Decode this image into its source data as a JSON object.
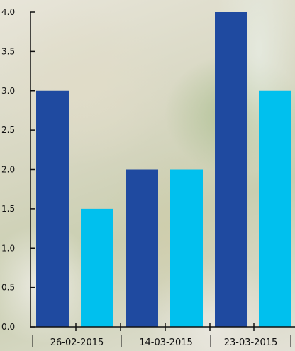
{
  "chart_data": {
    "type": "bar",
    "categories": [
      "26-02-2015",
      "14-03-2015",
      "23-03-2015"
    ],
    "series": [
      {
        "color": "#1f4aa0",
        "values": [
          3.0,
          2.0,
          4.0
        ]
      },
      {
        "color": "#00c0ee",
        "values": [
          1.5,
          2.0,
          3.0
        ]
      }
    ],
    "y_ticks": [
      "0.0",
      "0.5",
      "1.0",
      "1.5",
      "2.0",
      "2.5",
      "3.0",
      "3.5",
      "4.0"
    ],
    "ylim": [
      0,
      4
    ],
    "grid": false,
    "title": "",
    "xlabel": "",
    "ylabel": ""
  }
}
